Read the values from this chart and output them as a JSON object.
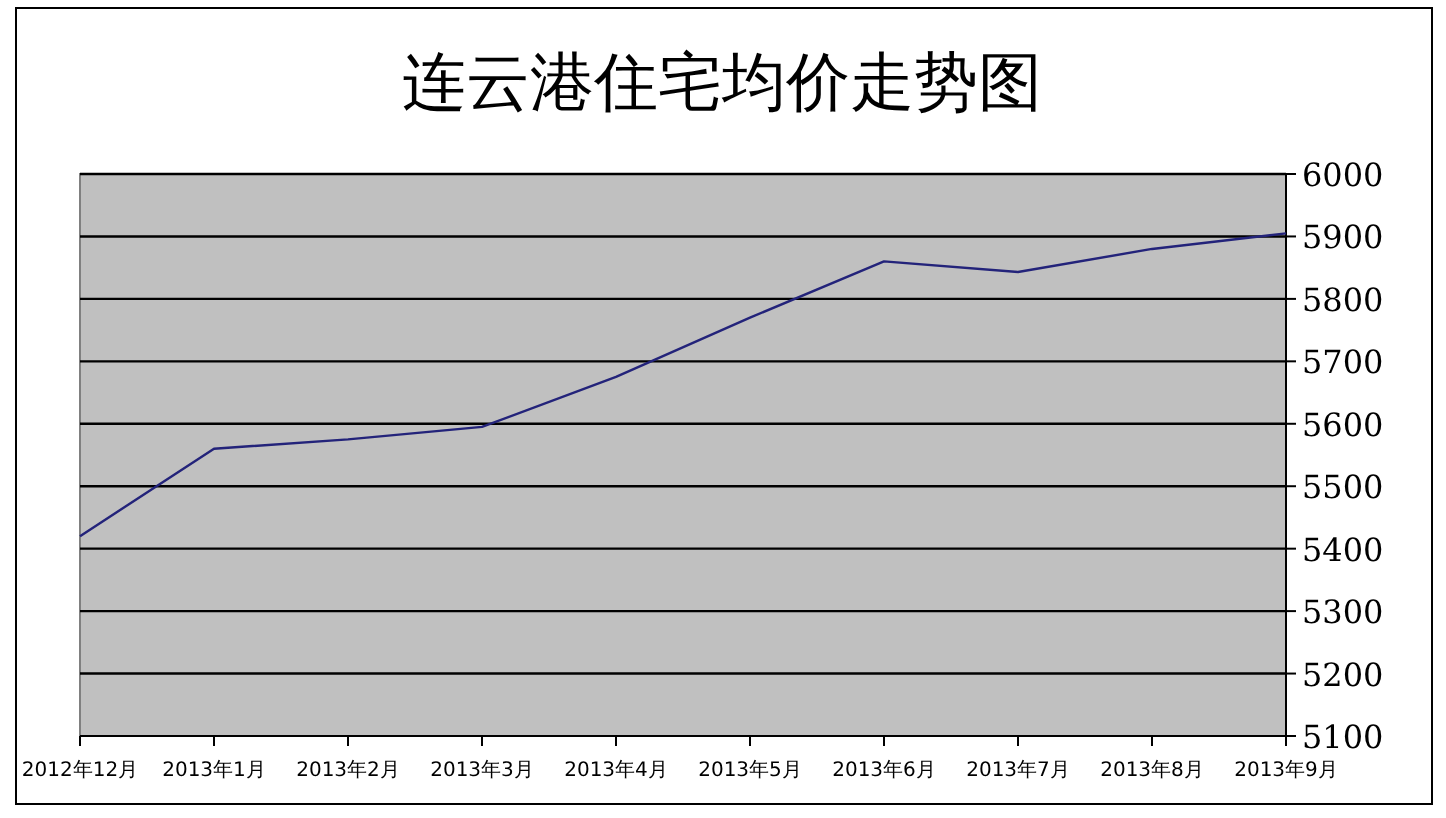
{
  "chart_data": {
    "type": "line",
    "title": "连云港住宅均价走势图",
    "categories": [
      "2012年12月",
      "2013年1月",
      "2013年2月",
      "2013年3月",
      "2013年4月",
      "2013年5月",
      "2013年6月",
      "2013年7月",
      "2013年8月",
      "2013年9月"
    ],
    "series": [
      {
        "color": "#23237a",
        "values": [
          5420,
          5560,
          5575,
          5595,
          5675,
          5770,
          5860,
          5843,
          5880,
          5905
        ]
      }
    ],
    "ylim": [
      5100,
      6000
    ],
    "yticks": [
      5100,
      5200,
      5300,
      5400,
      5500,
      5600,
      5700,
      5800,
      5900,
      6000
    ],
    "grid": "y",
    "marker": "none",
    "line_style": "solid"
  }
}
